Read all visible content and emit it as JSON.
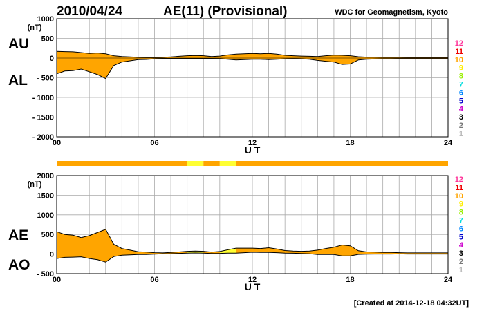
{
  "header": {
    "date": "2010/04/24",
    "title": "AE(11) (Provisional)",
    "source": "WDC for Geomagnetism, Kyoto"
  },
  "footer": {
    "created": "[Created at 2014-12-18 04:32UT]"
  },
  "colors": {
    "fill_main": "#ffa500",
    "fill_highlight": "#ffff33",
    "frame": "#000000",
    "grid": "#aaaaaa"
  },
  "legend_levels": [
    {
      "label": "12",
      "color": "#ff3399"
    },
    {
      "label": "11",
      "color": "#ee0000"
    },
    {
      "label": "10",
      "color": "#ffa500"
    },
    {
      "label": "9",
      "color": "#ffee00"
    },
    {
      "label": "8",
      "color": "#99ee00"
    },
    {
      "label": "7",
      "color": "#00dddd"
    },
    {
      "label": "6",
      "color": "#0088ff"
    },
    {
      "label": "5",
      "color": "#0000cc"
    },
    {
      "label": "4",
      "color": "#cc00cc"
    },
    {
      "label": "3",
      "color": "#000000"
    },
    {
      "label": "2",
      "color": "#777777"
    },
    {
      "label": "1",
      "color": "#bbbbbb"
    }
  ],
  "chart_data": [
    {
      "type": "area",
      "name": "AU/AL",
      "labels": {
        "upper": "AU",
        "lower": "AL"
      },
      "unit": "(nT)",
      "xlabel": "U T",
      "xlim": [
        0,
        24
      ],
      "ylim": [
        -2000,
        1000
      ],
      "x_ticks": [
        "00",
        "06",
        "12",
        "18",
        "24"
      ],
      "y_ticks": [
        "1000",
        "500",
        "0",
        "- 500",
        "- 1000",
        "- 1500",
        "- 2000"
      ],
      "grid": true,
      "x": [
        0,
        0.5,
        1,
        1.5,
        2,
        2.5,
        3,
        3.5,
        4,
        4.5,
        5,
        5.5,
        6,
        6.5,
        7,
        7.5,
        8,
        8.5,
        9,
        9.5,
        10,
        10.5,
        11,
        11.5,
        12,
        12.5,
        13,
        13.5,
        14,
        14.5,
        15,
        15.5,
        16,
        16.5,
        17,
        17.5,
        18,
        18.5,
        19,
        19.5,
        20,
        20.5,
        21,
        21.5,
        22,
        22.5,
        23,
        23.5,
        24
      ],
      "series": [
        {
          "label": "AU",
          "values": [
            170,
            165,
            160,
            140,
            120,
            130,
            110,
            60,
            40,
            30,
            20,
            15,
            15,
            20,
            30,
            45,
            60,
            65,
            60,
            40,
            50,
            80,
            100,
            110,
            120,
            110,
            120,
            100,
            70,
            60,
            50,
            45,
            40,
            60,
            75,
            70,
            60,
            35,
            25,
            25,
            20,
            20,
            20,
            15,
            15,
            15,
            15,
            15,
            15
          ]
        },
        {
          "label": "AL",
          "values": [
            -400,
            -330,
            -320,
            -280,
            -350,
            -420,
            -520,
            -190,
            -100,
            -70,
            -40,
            -35,
            -20,
            -10,
            -10,
            -10,
            -10,
            -10,
            -10,
            -10,
            -15,
            -30,
            -50,
            -40,
            -30,
            -30,
            -40,
            -30,
            -20,
            -15,
            -20,
            -30,
            -60,
            -80,
            -100,
            -160,
            -150,
            -50,
            -30,
            -25,
            -20,
            -20,
            -15,
            -15,
            -15,
            -15,
            -15,
            -15,
            -15
          ]
        }
      ]
    },
    {
      "type": "area",
      "name": "AE/AO",
      "labels": {
        "upper": "AE",
        "lower": "AO"
      },
      "unit": "(nT)",
      "xlabel": "U T",
      "xlim": [
        0,
        24
      ],
      "ylim": [
        -500,
        2000
      ],
      "x_ticks": [
        "00",
        "06",
        "12",
        "18",
        "24"
      ],
      "y_ticks": [
        "2000",
        "1500",
        "1000",
        "500",
        "0",
        "- 500"
      ],
      "grid": true,
      "x": [
        0,
        0.5,
        1,
        1.5,
        2,
        2.5,
        3,
        3.5,
        4,
        4.5,
        5,
        5.5,
        6,
        6.5,
        7,
        7.5,
        8,
        8.5,
        9,
        9.5,
        10,
        10.5,
        11,
        11.5,
        12,
        12.5,
        13,
        13.5,
        14,
        14.5,
        15,
        15.5,
        16,
        16.5,
        17,
        17.5,
        18,
        18.5,
        19,
        19.5,
        20,
        20.5,
        21,
        21.5,
        22,
        22.5,
        23,
        23.5,
        24
      ],
      "series": [
        {
          "label": "AE",
          "values": [
            570,
            500,
            480,
            420,
            470,
            550,
            630,
            250,
            140,
            100,
            60,
            50,
            35,
            30,
            40,
            55,
            70,
            75,
            70,
            50,
            65,
            110,
            150,
            150,
            150,
            140,
            160,
            130,
            90,
            75,
            70,
            75,
            100,
            140,
            175,
            230,
            210,
            85,
            55,
            50,
            40,
            40,
            35,
            30,
            30,
            30,
            30,
            30,
            30
          ]
        },
        {
          "label": "AO",
          "values": [
            -115,
            -85,
            -80,
            -70,
            -115,
            -145,
            -205,
            -65,
            -30,
            -20,
            -10,
            -10,
            -3,
            5,
            10,
            18,
            25,
            28,
            25,
            15,
            18,
            25,
            25,
            35,
            45,
            40,
            40,
            35,
            25,
            22,
            15,
            8,
            -10,
            -10,
            -12,
            -45,
            -45,
            -8,
            -3,
            0,
            0,
            0,
            3,
            0,
            0,
            0,
            0,
            0,
            0
          ]
        }
      ],
      "highlight_ranges": [
        [
          8,
          9
        ],
        [
          10,
          11
        ]
      ]
    }
  ],
  "status_bar": {
    "xlim": [
      0,
      24
    ],
    "segments": [
      {
        "from": 0,
        "to": 8,
        "level": "10"
      },
      {
        "from": 8,
        "to": 9,
        "level": "9"
      },
      {
        "from": 9,
        "to": 10,
        "level": "10"
      },
      {
        "from": 10,
        "to": 11,
        "level": "9"
      },
      {
        "from": 11,
        "to": 24,
        "level": "10"
      }
    ]
  }
}
